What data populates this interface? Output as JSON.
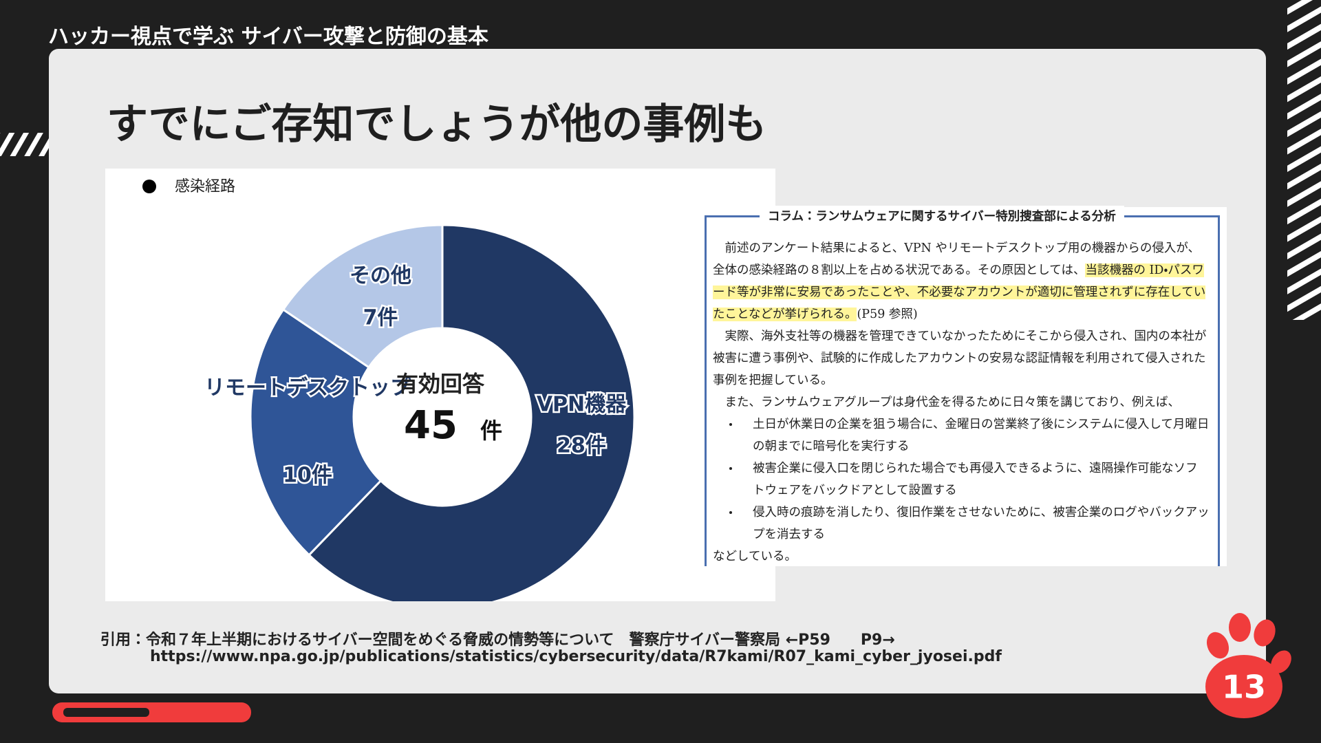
{
  "header": {
    "series_title": "ハッカー視点で学ぶ サイバー攻撃と防御の基本"
  },
  "slide": {
    "title": "すでにご存知でしょうが他の事例も",
    "citation": {
      "label": "引用：",
      "text": "令和７年上半期におけるサイバー空間をめぐる脅威の情勢等について　警察庁サイバー警察局 ←P59　　P9→",
      "url": "https://www.npa.go.jp/publications/statistics/cybersecurity/data/R7kami/R07_kami_cyber_jyosei.pdf"
    },
    "page_number": 13
  },
  "chart_data": {
    "type": "donut",
    "legend_label": "感染経路",
    "categories": [
      "VPN機器",
      "リモートデスクトップ",
      "その他"
    ],
    "values": [
      28,
      10,
      7
    ],
    "value_labels": [
      "28件",
      "10件",
      "7件"
    ],
    "colors": [
      "#203864",
      "#2f5597",
      "#b4c7e7"
    ],
    "center_label": "有効回答",
    "center_value": 45,
    "center_unit": "件"
  },
  "document": {
    "title": "コラム：ランサムウェアに関するサイバー特別捜査部による分析",
    "paragraph_1": {
      "before": "前述のアンケート結果によると、VPN やリモートデスクトップ用の機器からの侵入が、全体の感染経路の８割以上を占める状況である。その原因としては、",
      "highlight": "当該機器の ID・パスワード等が非常に安易であったことや、不必要なアカウントが適切に管理されずに存在していたことなどが挙げられる。",
      "after": "(P59 参照)"
    },
    "paragraph_2": "実際、海外支社等の機器を管理できていなかったためにそこから侵入され、国内の本社が被害に遭う事例や、試験的に作成したアカウントの安易な認証情報を利用されて侵入された事例を把握している。",
    "paragraph_3": "また、ランサムウェアグループは身代金を得るために日々策を講じており、例えば、",
    "bullets": [
      "土日が休業日の企業を狙う場合に、金曜日の営業終了後にシステムに侵入して月曜日の朝までに暗号化を実行する",
      "被害企業に侵入口を閉じられた場合でも再侵入できるように、遠隔操作可能なソフトウェアをバックドアとして設置する",
      "侵入時の痕跡を消したり、復旧作業をさせないために、被害企業のログやバックアップを消去する"
    ],
    "closing": "などしている。"
  }
}
